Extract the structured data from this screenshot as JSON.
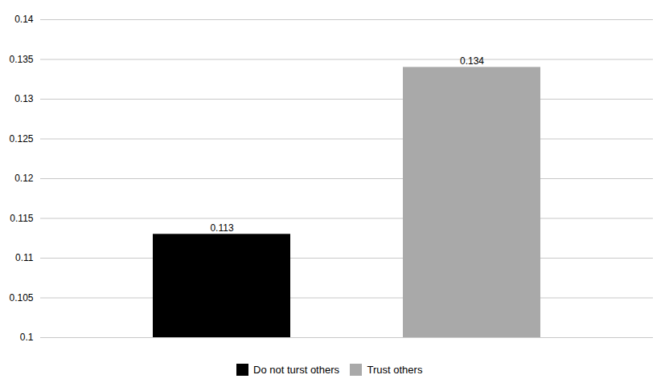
{
  "chart_data": {
    "type": "bar",
    "categories": [
      "Do not turst others",
      "Trust others"
    ],
    "values": [
      0.113,
      0.134
    ],
    "colors": [
      "#000000",
      "#a9a9a9"
    ],
    "ylim": [
      0.1,
      0.14
    ],
    "yticks": [
      0.1,
      0.105,
      0.11,
      0.115,
      0.12,
      0.125,
      0.13,
      0.135,
      0.14
    ],
    "grid": true,
    "data_labels": true,
    "tick_labels": "y",
    "legend": "bottom"
  }
}
